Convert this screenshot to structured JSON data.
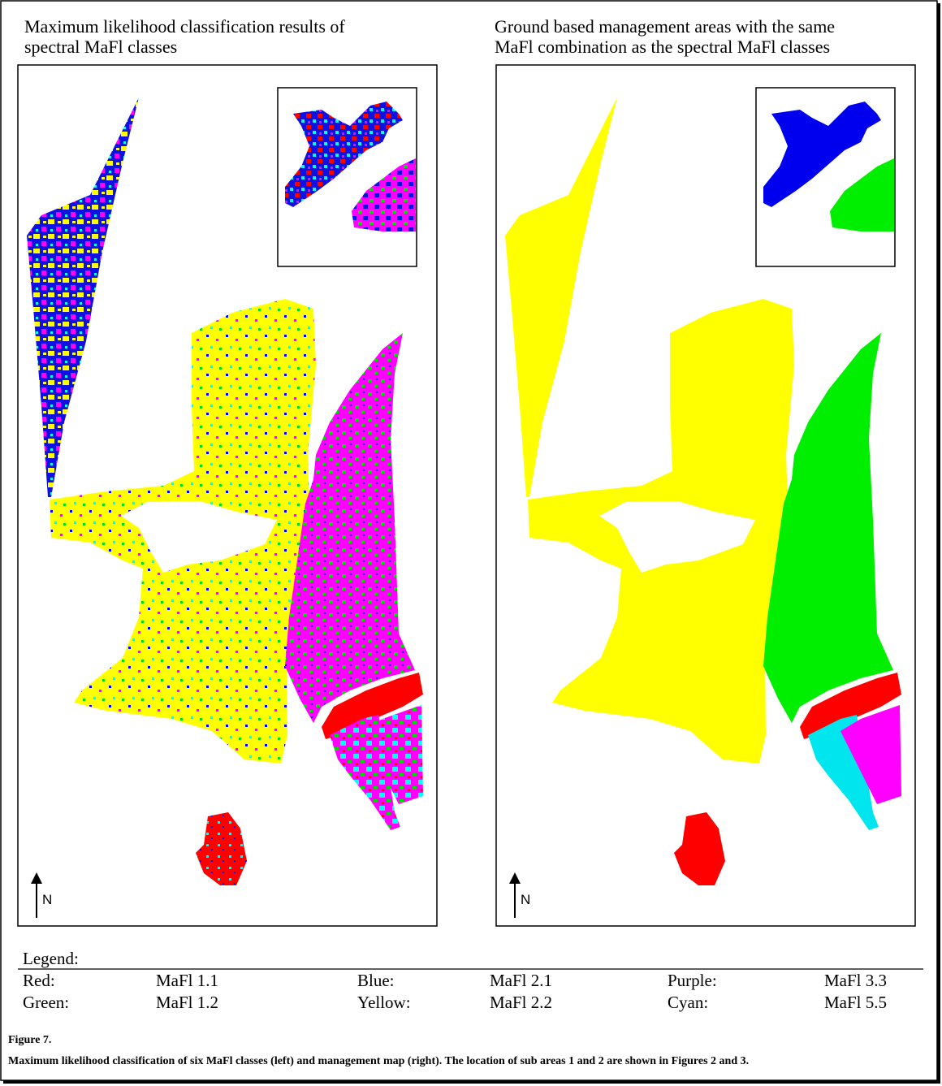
{
  "panels": [
    {
      "title_lines": [
        "Maximum likelihood classification results of",
        "spectral MaFl classes"
      ],
      "north": "N"
    },
    {
      "title_lines": [
        "Ground based management areas with the same",
        "MaFl combination as the spectral  MaFl classes"
      ],
      "north": "N"
    }
  ],
  "legend": {
    "title": "Legend:",
    "items": [
      {
        "color": "Red:",
        "class": "MaFl 1.1"
      },
      {
        "color": "Blue:",
        "class": "MaFl 2.1"
      },
      {
        "color": "Purple:",
        "class": "MaFl 3.3"
      },
      {
        "color": "Green:",
        "class": "MaFl 1.2"
      },
      {
        "color": "Yellow:",
        "class": "MaFl 2.2"
      },
      {
        "color": "Cyan:",
        "class": "MaFl 5.5"
      }
    ]
  },
  "caption": {
    "label": "Figure 7.",
    "text": "Maximum likelihood classification of six MaFl classes (left) and management map (right). The location of sub areas 1 and 2 are shown in Figures 2 and 3."
  }
}
